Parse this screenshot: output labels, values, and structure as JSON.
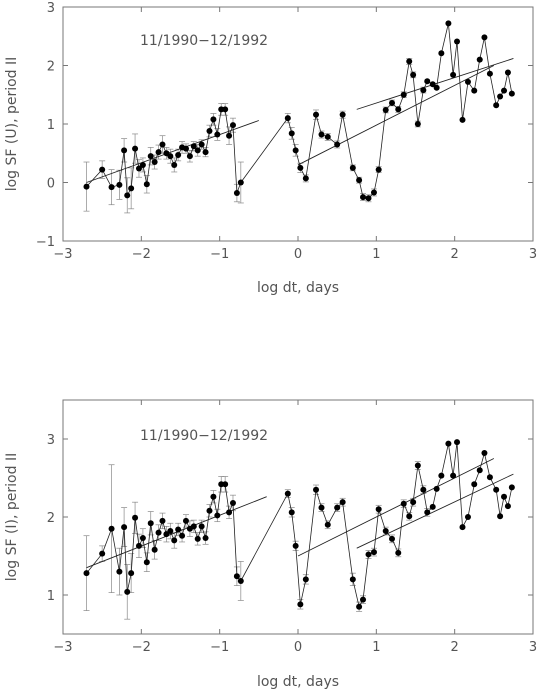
{
  "chart_data": [
    {
      "type": "scatter",
      "title": "",
      "annotation": "11/1990−12/1992",
      "xlabel": "log dt, days",
      "ylabel": "log SF (U), period II",
      "xlim": [
        -3,
        3
      ],
      "ylim": [
        -1,
        3
      ],
      "xticks": [
        -3,
        -2,
        -1,
        0,
        1,
        2,
        3
      ],
      "yticks": [
        -1,
        0,
        1,
        2,
        3
      ],
      "xtick_labels": [
        "−3",
        "−2",
        "−1",
        "0",
        "1",
        "2",
        "3"
      ],
      "ytick_labels": [
        "−1",
        "0",
        "1",
        "2",
        "3"
      ],
      "connected": true,
      "points": [
        [
          -2.7,
          -0.07,
          0.42
        ],
        [
          -2.5,
          0.22,
          0.15
        ],
        [
          -2.38,
          -0.08,
          0.3
        ],
        [
          -2.28,
          -0.04,
          0.25
        ],
        [
          -2.22,
          0.55,
          0.2
        ],
        [
          -2.18,
          -0.22,
          0.3
        ],
        [
          -2.13,
          -0.1,
          0.35
        ],
        [
          -2.08,
          0.58,
          0.25
        ],
        [
          -2.03,
          0.24,
          0.15
        ],
        [
          -1.98,
          0.3,
          0.12
        ],
        [
          -1.93,
          -0.03,
          0.15
        ],
        [
          -1.88,
          0.45,
          0.15
        ],
        [
          -1.83,
          0.35,
          0.12
        ],
        [
          -1.78,
          0.52,
          0.12
        ],
        [
          -1.73,
          0.65,
          0.15
        ],
        [
          -1.68,
          0.5,
          0.1
        ],
        [
          -1.63,
          0.45,
          0.12
        ],
        [
          -1.58,
          0.3,
          0.12
        ],
        [
          -1.53,
          0.47,
          0.1
        ],
        [
          -1.48,
          0.6,
          0.1
        ],
        [
          -1.43,
          0.58,
          0.08
        ],
        [
          -1.38,
          0.45,
          0.1
        ],
        [
          -1.33,
          0.62,
          0.08
        ],
        [
          -1.28,
          0.55,
          0.1
        ],
        [
          -1.23,
          0.65,
          0.08
        ],
        [
          -1.18,
          0.52,
          0.08
        ],
        [
          -1.13,
          0.88,
          0.1
        ],
        [
          -1.08,
          1.08,
          0.1
        ],
        [
          -1.03,
          0.82,
          0.1
        ],
        [
          -0.98,
          1.25,
          0.1
        ],
        [
          -0.93,
          1.25,
          0.1
        ],
        [
          -0.88,
          0.8,
          0.15
        ],
        [
          -0.83,
          0.98,
          0.12
        ],
        [
          -0.78,
          -0.18,
          0.15
        ],
        [
          -0.73,
          0.0,
          0.35
        ],
        [
          -0.13,
          1.1,
          0.08
        ],
        [
          -0.08,
          0.84,
          0.1
        ],
        [
          -0.03,
          0.55,
          0.1
        ],
        [
          0.03,
          0.25,
          0.08
        ],
        [
          0.1,
          0.07,
          0.06
        ],
        [
          0.23,
          1.16,
          0.08
        ],
        [
          0.3,
          0.82,
          0.06
        ],
        [
          0.38,
          0.78,
          0.06
        ],
        [
          0.5,
          0.65,
          0.06
        ],
        [
          0.57,
          1.16,
          0.06
        ],
        [
          0.7,
          0.25,
          0.05
        ],
        [
          0.78,
          0.04,
          0.05
        ],
        [
          0.83,
          -0.25,
          0.06
        ],
        [
          0.9,
          -0.27,
          0.06
        ],
        [
          0.97,
          -0.17,
          0.06
        ],
        [
          1.03,
          0.22,
          0.05
        ],
        [
          1.12,
          1.24,
          0.05
        ],
        [
          1.2,
          1.36,
          0.05
        ],
        [
          1.28,
          1.25,
          0.05
        ],
        [
          1.35,
          1.5,
          0.05
        ],
        [
          1.42,
          2.07,
          0.05
        ],
        [
          1.47,
          1.84,
          0.05
        ],
        [
          1.53,
          1.0,
          0.05
        ],
        [
          1.6,
          1.58,
          0.05
        ],
        [
          1.65,
          1.73,
          0.04
        ],
        [
          1.72,
          1.68,
          0.04
        ],
        [
          1.77,
          1.62,
          0.04
        ],
        [
          1.83,
          2.21,
          0.04
        ],
        [
          1.92,
          2.72,
          0.04
        ],
        [
          1.98,
          1.84,
          0.04
        ],
        [
          2.03,
          2.41,
          0.04
        ],
        [
          2.1,
          1.07,
          0.04
        ],
        [
          2.17,
          1.72,
          0.04
        ],
        [
          2.25,
          1.57,
          0.04
        ],
        [
          2.32,
          2.1,
          0.04
        ],
        [
          2.38,
          2.48,
          0.04
        ],
        [
          2.45,
          1.86,
          0.04
        ],
        [
          2.53,
          1.32,
          0.04
        ],
        [
          2.58,
          1.47,
          0.04
        ],
        [
          2.63,
          1.57,
          0.04
        ],
        [
          2.68,
          1.88,
          0.04
        ],
        [
          2.73,
          1.52,
          0.04
        ]
      ],
      "fit_lines": [
        {
          "x": [
            -2.7,
            -0.5
          ],
          "y": [
            0.0,
            1.06
          ]
        },
        {
          "x": [
            0.0,
            2.5
          ],
          "y": [
            0.3,
            2.0
          ]
        },
        {
          "x": [
            0.75,
            2.75
          ],
          "y": [
            1.25,
            2.12
          ]
        }
      ]
    },
    {
      "type": "scatter",
      "title": "",
      "annotation": "11/1990−12/1992",
      "xlabel": "log dt, days",
      "ylabel": "log SF (I), period II",
      "xlim": [
        -3,
        3
      ],
      "ylim": [
        0.5,
        3.5
      ],
      "xticks": [
        -3,
        -2,
        -1,
        0,
        1,
        2,
        3
      ],
      "yticks": [
        1,
        2,
        3
      ],
      "xtick_labels": [
        "−3",
        "−2",
        "−1",
        "0",
        "1",
        "2",
        "3"
      ],
      "ytick_labels": [
        "1",
        "2",
        "3"
      ],
      "connected": true,
      "points": [
        [
          -2.7,
          1.28,
          0.48
        ],
        [
          -2.5,
          1.53,
          0.1
        ],
        [
          -2.38,
          1.85,
          0.82
        ],
        [
          -2.28,
          1.3,
          0.3
        ],
        [
          -2.22,
          1.87,
          0.25
        ],
        [
          -2.18,
          1.04,
          0.35
        ],
        [
          -2.13,
          1.28,
          0.25
        ],
        [
          -2.08,
          1.99,
          0.2
        ],
        [
          -2.03,
          1.63,
          0.15
        ],
        [
          -1.98,
          1.73,
          0.12
        ],
        [
          -1.93,
          1.42,
          0.12
        ],
        [
          -1.88,
          1.92,
          0.15
        ],
        [
          -1.83,
          1.58,
          0.12
        ],
        [
          -1.78,
          1.8,
          0.1
        ],
        [
          -1.73,
          1.95,
          0.1
        ],
        [
          -1.68,
          1.78,
          0.1
        ],
        [
          -1.63,
          1.82,
          0.1
        ],
        [
          -1.58,
          1.7,
          0.1
        ],
        [
          -1.53,
          1.84,
          0.08
        ],
        [
          -1.48,
          1.76,
          0.08
        ],
        [
          -1.43,
          1.95,
          0.08
        ],
        [
          -1.38,
          1.85,
          0.1
        ],
        [
          -1.33,
          1.88,
          0.08
        ],
        [
          -1.28,
          1.72,
          0.08
        ],
        [
          -1.23,
          1.88,
          0.08
        ],
        [
          -1.18,
          1.73,
          0.08
        ],
        [
          -1.13,
          2.08,
          0.08
        ],
        [
          -1.08,
          2.26,
          0.08
        ],
        [
          -1.03,
          2.02,
          0.08
        ],
        [
          -0.98,
          2.42,
          0.1
        ],
        [
          -0.93,
          2.42,
          0.1
        ],
        [
          -0.88,
          2.06,
          0.08
        ],
        [
          -0.83,
          2.18,
          0.1
        ],
        [
          -0.78,
          1.24,
          0.12
        ],
        [
          -0.73,
          1.18,
          0.25
        ],
        [
          -0.13,
          2.3,
          0.05
        ],
        [
          -0.08,
          2.06,
          0.06
        ],
        [
          -0.03,
          1.63,
          0.06
        ],
        [
          0.03,
          0.88,
          0.06
        ],
        [
          0.1,
          1.2,
          0.06
        ],
        [
          0.23,
          2.35,
          0.06
        ],
        [
          0.3,
          2.12,
          0.05
        ],
        [
          0.38,
          1.9,
          0.05
        ],
        [
          0.5,
          2.12,
          0.05
        ],
        [
          0.57,
          2.19,
          0.05
        ],
        [
          0.7,
          1.2,
          0.08
        ],
        [
          0.78,
          0.85,
          0.06
        ],
        [
          0.83,
          0.94,
          0.05
        ],
        [
          0.9,
          1.52,
          0.05
        ],
        [
          0.97,
          1.55,
          0.05
        ],
        [
          1.03,
          2.1,
          0.05
        ],
        [
          1.12,
          1.82,
          0.05
        ],
        [
          1.2,
          1.72,
          0.05
        ],
        [
          1.28,
          1.54,
          0.05
        ],
        [
          1.35,
          2.17,
          0.05
        ],
        [
          1.42,
          2.01,
          0.05
        ],
        [
          1.47,
          2.19,
          0.05
        ],
        [
          1.53,
          2.66,
          0.05
        ],
        [
          1.6,
          2.35,
          0.05
        ],
        [
          1.65,
          2.06,
          0.05
        ],
        [
          1.72,
          2.13,
          0.04
        ],
        [
          1.77,
          2.36,
          0.04
        ],
        [
          1.83,
          2.53,
          0.04
        ],
        [
          1.92,
          2.94,
          0.04
        ],
        [
          1.98,
          2.53,
          0.04
        ],
        [
          2.03,
          2.96,
          0.04
        ],
        [
          2.1,
          1.87,
          0.04
        ],
        [
          2.17,
          2.0,
          0.04
        ],
        [
          2.25,
          2.42,
          0.04
        ],
        [
          2.32,
          2.6,
          0.04
        ],
        [
          2.38,
          2.82,
          0.04
        ],
        [
          2.45,
          2.51,
          0.04
        ],
        [
          2.53,
          2.35,
          0.04
        ],
        [
          2.58,
          2.01,
          0.04
        ],
        [
          2.63,
          2.26,
          0.04
        ],
        [
          2.68,
          2.14,
          0.04
        ],
        [
          2.73,
          2.38,
          0.04
        ]
      ],
      "fit_lines": [
        {
          "x": [
            -2.7,
            -0.4
          ],
          "y": [
            1.35,
            2.26
          ]
        },
        {
          "x": [
            0.0,
            2.5
          ],
          "y": [
            1.5,
            2.75
          ]
        },
        {
          "x": [
            0.75,
            2.75
          ],
          "y": [
            1.6,
            2.55
          ]
        }
      ]
    }
  ]
}
